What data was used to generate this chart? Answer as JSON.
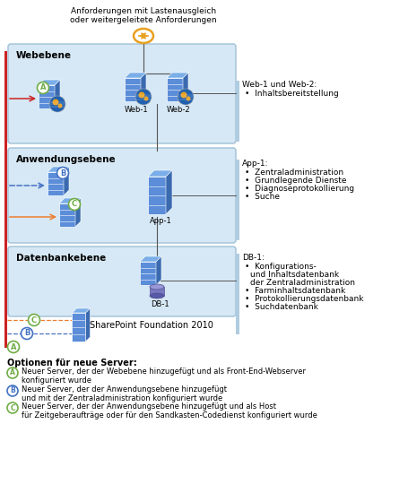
{
  "top_label": "Anforderungen mit Lastenausgleich\noder weitergeleitete Anforderungen",
  "web_layer_label": "Webebene",
  "app_layer_label": "Anwendungsebene",
  "db_layer_label": "Datenbankebene",
  "layer_box_color": "#d6e8f5",
  "layer_box_edge": "#a0c0d8",
  "web_info_title": "Web-1 und Web-2:",
  "web_info_bullets": [
    "Inhaltsbereitstellung"
  ],
  "app_info_title": "App-1:",
  "app_info_bullets": [
    "Zentraladministration",
    "Grundlegende Dienste",
    "Diagnoseprotokollierung",
    "Suche"
  ],
  "db_info_title": "DB-1:",
  "db_info_bullets": [
    "Konfigurations-",
    "und Inhaltsdatenbank",
    "der Zentraladministration",
    "Farminhaltsdatenbank",
    "Protokollierungsdatenbank",
    "Suchdatenbank"
  ],
  "legend_title": "Optionen für neue Server:",
  "legend_A": "Neuer Server, der der Webebene hinzugefügt und als Front-End-Webserver\nkonfiguriert wurde",
  "legend_B": "Neuer Server, der der Anwendungsebene hinzugefügt\nund mit der Zentraladministration konfiguriert wurde",
  "legend_C": "Neuer Server, der der Anwendungsebene hinzugefügt und als Host\nfür Zeitgeberaufträge oder für den Sandkasten-Codedienst konfiguriert wurde",
  "sharepoint_label": "SharePoint Foundation 2010",
  "server_front": "#5b8dd9",
  "server_top": "#7aaee8",
  "server_right": "#3a6ab0",
  "server_line": "#ffffff",
  "globe_blue": "#2060b0",
  "globe_orange": "#e8a020",
  "db_body": "#7878c0",
  "db_top": "#9898d8",
  "db_edge": "#505090",
  "circle_A_color": "#70ad47",
  "circle_B_color": "#4472c4",
  "circle_C_color": "#70ad47",
  "red_bar_color": "#cc2222",
  "red_arrow_color": "#cc2222",
  "blue_dashed_color": "#4472c4",
  "orange_arrow_color": "#ed7d31",
  "lb_color": "#e8a020",
  "side_bar_color": "#b0cce0",
  "text_color": "#000000",
  "line_color": "#555555"
}
